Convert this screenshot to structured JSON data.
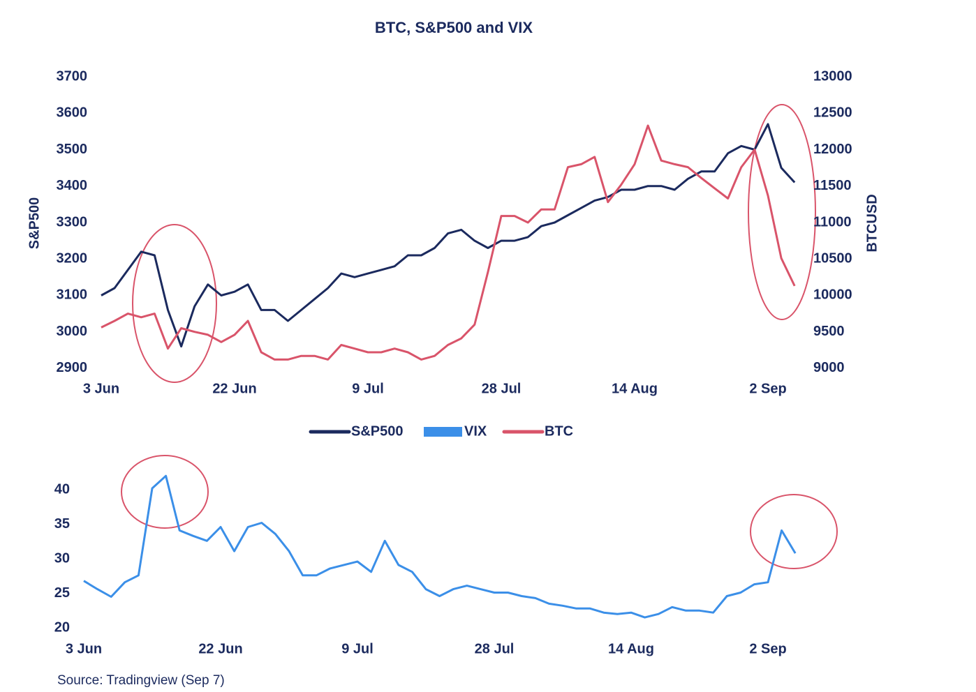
{
  "source": "Source: Tradingview (Sep 7)",
  "chart_data": [
    {
      "type": "line",
      "title": "BTC, S&P500 and VIX",
      "y_label": "S&P500",
      "y2_label": "BTCUSD",
      "categories": [
        "3 Jun",
        null,
        null,
        null,
        null,
        null,
        null,
        null,
        null,
        null,
        "22 Jun",
        null,
        null,
        null,
        null,
        null,
        null,
        null,
        null,
        null,
        "9 Jul",
        null,
        null,
        null,
        null,
        null,
        null,
        null,
        null,
        null,
        "28 Jul",
        null,
        null,
        null,
        null,
        null,
        null,
        null,
        null,
        null,
        "14 Aug",
        null,
        null,
        null,
        null,
        null,
        null,
        null,
        null,
        null,
        "2 Sep",
        null,
        null
      ],
      "ylim": [
        2880,
        3700
      ],
      "yticks": [
        2900,
        3000,
        3100,
        3200,
        3300,
        3400,
        3500,
        3600,
        3700
      ],
      "y2lim": [
        8900,
        13000
      ],
      "y2ticks": [
        9000,
        9500,
        10000,
        10500,
        11000,
        11500,
        12000,
        12500,
        13000
      ],
      "series": [
        {
          "name": "S&P500",
          "color": "#1b2a5e",
          "values": [
            3100,
            3120,
            3170,
            3220,
            3210,
            3060,
            2960,
            3070,
            3130,
            3100,
            3110,
            3130,
            3060,
            3060,
            3030,
            3060,
            3090,
            3120,
            3160,
            3150,
            3160,
            3170,
            3180,
            3210,
            3210,
            3230,
            3270,
            3280,
            3250,
            3230,
            3250,
            3250,
            3260,
            3290,
            3300,
            3320,
            3340,
            3360,
            3370,
            3390,
            3390,
            3400,
            3400,
            3390,
            3420,
            3440,
            3440,
            3490,
            3510,
            3500,
            3570,
            3450,
            3410
          ]
        },
        {
          "name": "BTC",
          "color": "#d9546a",
          "axis": "y2",
          "values": [
            9560,
            9650,
            9750,
            9700,
            9750,
            9270,
            9550,
            9500,
            9460,
            9360,
            9460,
            9650,
            9220,
            9120,
            9120,
            9170,
            9170,
            9120,
            9320,
            9270,
            9220,
            9220,
            9270,
            9220,
            9120,
            9170,
            9320,
            9410,
            9600,
            10320,
            11090,
            11090,
            11000,
            11180,
            11180,
            11760,
            11800,
            11900,
            11280,
            11520,
            11800,
            12330,
            11850,
            11800,
            11760,
            11610,
            11470,
            11330,
            11760,
            12000,
            11370,
            10510,
            10130
          ]
        }
      ]
    },
    {
      "type": "line",
      "categories": [
        "3 Jun",
        null,
        null,
        null,
        null,
        null,
        null,
        null,
        null,
        null,
        "22 Jun",
        null,
        null,
        null,
        null,
        null,
        null,
        null,
        null,
        null,
        "9 Jul",
        null,
        null,
        null,
        null,
        null,
        null,
        null,
        null,
        null,
        "28 Jul",
        null,
        null,
        null,
        null,
        null,
        null,
        null,
        null,
        null,
        "14 Aug",
        null,
        null,
        null,
        null,
        null,
        null,
        null,
        null,
        null,
        "2 Sep",
        null,
        null
      ],
      "ylim": [
        20,
        44
      ],
      "yticks": [
        20,
        25,
        30,
        35,
        40
      ],
      "series": [
        {
          "name": "VIX",
          "color": "#3b8fe8",
          "values": [
            26.8,
            25.6,
            24.5,
            26.6,
            27.6,
            40.2,
            42,
            34.1,
            33.3,
            32.6,
            34.6,
            31.1,
            34.6,
            35.2,
            33.6,
            31.1,
            27.6,
            27.6,
            28.6,
            29.1,
            29.6,
            28.1,
            32.6,
            29.1,
            28.1,
            25.6,
            24.6,
            25.6,
            26.1,
            25.6,
            25.1,
            25.1,
            24.6,
            24.3,
            23.5,
            23.2,
            22.8,
            22.8,
            22.2,
            22,
            22.2,
            21.5,
            22,
            23,
            22.5,
            22.5,
            22.2,
            24.6,
            25.1,
            26.3,
            26.6,
            34.1,
            30.8
          ]
        }
      ]
    }
  ]
}
